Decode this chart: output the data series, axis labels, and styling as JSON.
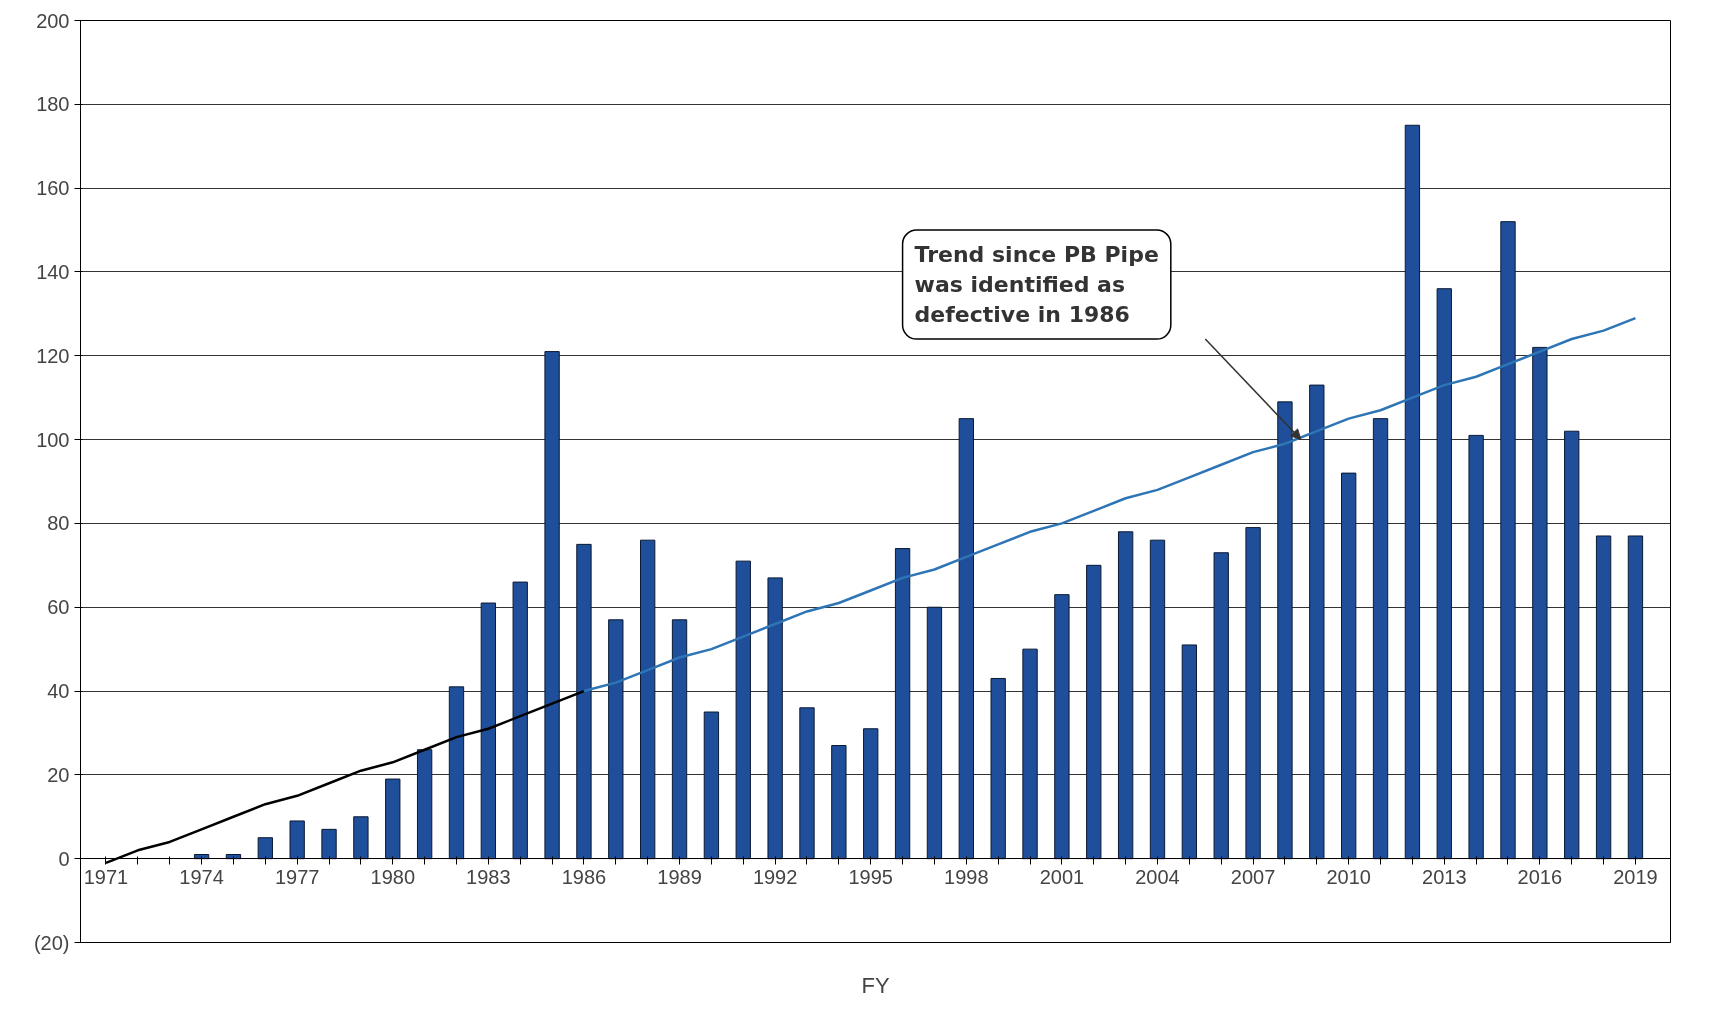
{
  "chart_data": {
    "type": "bar",
    "categories": [
      "1971",
      null,
      null,
      "1974",
      null,
      null,
      "1977",
      null,
      null,
      "1980",
      null,
      null,
      "1983",
      null,
      null,
      "1986",
      null,
      null,
      "1989",
      null,
      null,
      "1992",
      null,
      null,
      "1995",
      null,
      null,
      "1998",
      null,
      null,
      "2001",
      null,
      null,
      "2004",
      null,
      null,
      "2007",
      null,
      null,
      "2010",
      null,
      null,
      "2013",
      null,
      null,
      "2016",
      null,
      null,
      "2019"
    ],
    "series": [
      {
        "color": "#1f4e9a",
        "values": [
          null,
          null,
          null,
          1,
          1,
          5,
          9,
          7,
          10,
          19,
          26,
          41,
          61,
          66,
          121,
          75,
          57,
          76,
          57,
          35,
          71,
          67,
          36,
          27,
          31,
          74,
          60,
          105,
          43,
          50,
          63,
          70,
          78,
          76,
          51,
          73,
          79,
          109,
          113,
          92,
          105,
          175,
          136,
          101,
          152,
          122,
          102,
          77,
          77
        ]
      },
      {
        "type": "line",
        "color": "#000000",
        "values": [
          -1,
          2,
          4,
          7,
          10,
          13,
          15,
          18,
          21,
          23,
          26,
          29,
          31,
          34,
          37,
          40,
          null,
          null,
          null,
          null,
          null,
          null,
          null,
          null,
          null,
          null,
          null,
          null,
          null,
          null,
          null,
          null,
          null,
          null,
          null,
          null,
          null,
          null,
          null,
          null,
          null,
          null,
          null,
          null,
          null,
          null,
          null,
          null,
          null
        ]
      },
      {
        "type": "line",
        "color": "#2e75b6",
        "values": [
          null,
          null,
          null,
          null,
          null,
          null,
          null,
          null,
          null,
          null,
          null,
          null,
          null,
          null,
          null,
          40,
          42,
          45,
          48,
          50,
          53,
          56,
          59,
          61,
          64,
          67,
          69,
          72,
          75,
          78,
          80,
          83,
          86,
          88,
          91,
          94,
          97,
          99,
          102,
          105,
          107,
          110,
          113,
          115,
          118,
          121,
          124,
          126,
          129
        ]
      }
    ],
    "xlabel": "FY",
    "ylim": [
      -20,
      200
    ],
    "yticks": [
      {
        "value": -20,
        "label": "(20)"
      },
      0,
      20,
      40,
      60,
      80,
      100,
      120,
      140,
      160,
      180,
      200
    ],
    "grid": "y",
    "annotations": [
      "Trend since PB Pipe\nwas identified as\ndefective in 1986"
    ]
  }
}
